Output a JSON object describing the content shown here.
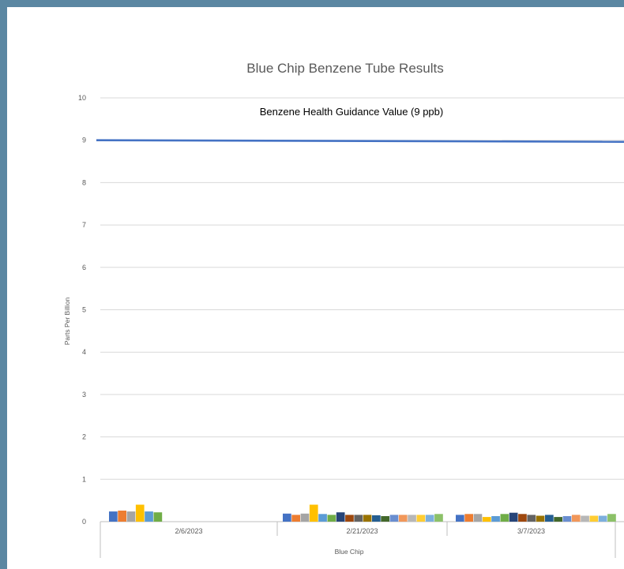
{
  "chart_data": {
    "type": "bar",
    "title": "Blue Chip Benzene Tube Results",
    "xlabel": "Blue Chip",
    "ylabel": "Parts Per Billion",
    "ylim": [
      0,
      10
    ],
    "yticks": [
      "0",
      "1",
      "2",
      "3",
      "4",
      "5",
      "6",
      "7",
      "8",
      "9",
      "10"
    ],
    "grid": true,
    "legend": "none",
    "categories": [
      "2/6/2023",
      "2/21/2023",
      "3/7/2023"
    ],
    "groups": [
      {
        "category": "2/6/2023",
        "values": [
          0.24,
          0.26,
          0.24,
          0.4,
          0.24,
          0.22
        ]
      },
      {
        "category": "2/21/2023",
        "values": [
          0.19,
          0.16,
          0.19,
          0.4,
          0.18,
          0.16,
          0.22,
          0.16,
          0.16,
          0.16,
          0.15,
          0.13,
          0.16,
          0.16,
          0.16,
          0.16,
          0.16,
          0.18
        ]
      },
      {
        "category": "3/7/2023",
        "values": [
          0.16,
          0.18,
          0.18,
          0.11,
          0.13,
          0.18,
          0.21,
          0.18,
          0.16,
          0.14,
          0.16,
          0.11,
          0.13,
          0.16,
          0.14,
          0.14,
          0.14,
          0.18
        ]
      }
    ],
    "reference_line": {
      "label": "Benzene Health Guidance Value (9 ppb)",
      "value": 9,
      "color": "#4472c4"
    },
    "bar_colors": [
      "#4472c4",
      "#ed7d31",
      "#a5a5a5",
      "#ffc000",
      "#5b9bd5",
      "#70ad47",
      "#264478",
      "#9e480e",
      "#636363",
      "#997300",
      "#255e91",
      "#43682b",
      "#698ed0",
      "#f1975a",
      "#b7b7b7",
      "#ffcd33",
      "#7cafdd",
      "#8cc168"
    ]
  }
}
